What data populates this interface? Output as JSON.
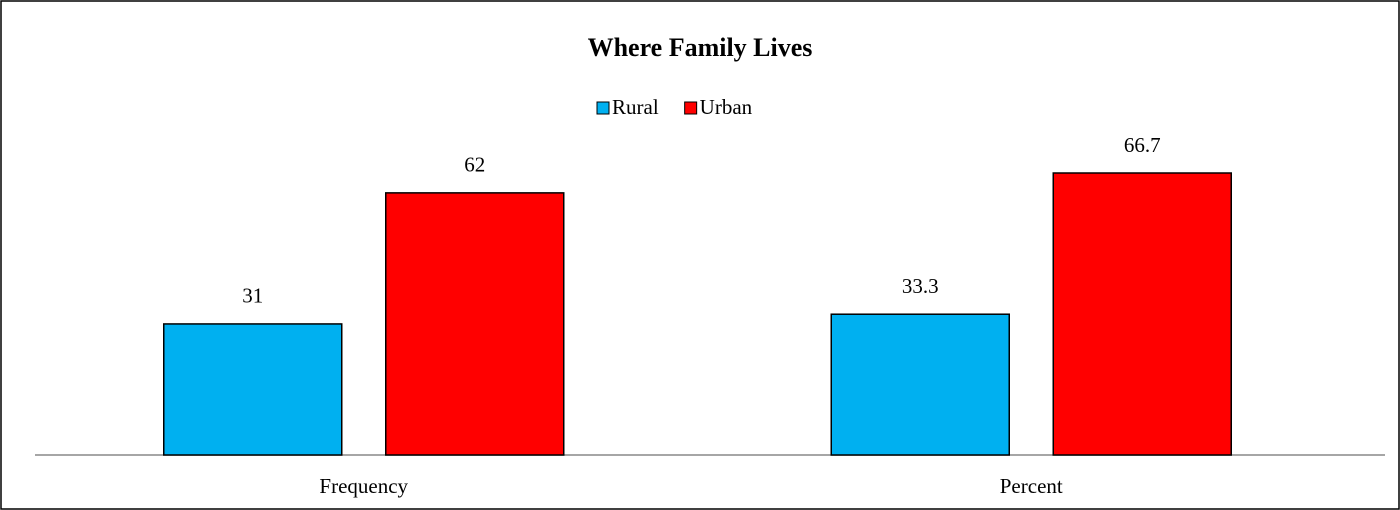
{
  "chart_data": {
    "type": "bar",
    "title": "Where Family Lives",
    "categories": [
      "Frequency",
      "Percent"
    ],
    "series": [
      {
        "name": "Rural",
        "color": "#00b0f0",
        "values": [
          31,
          33.3
        ]
      },
      {
        "name": "Urban",
        "color": "#ff0000",
        "values": [
          62,
          66.7
        ]
      }
    ],
    "legend": "top"
  }
}
